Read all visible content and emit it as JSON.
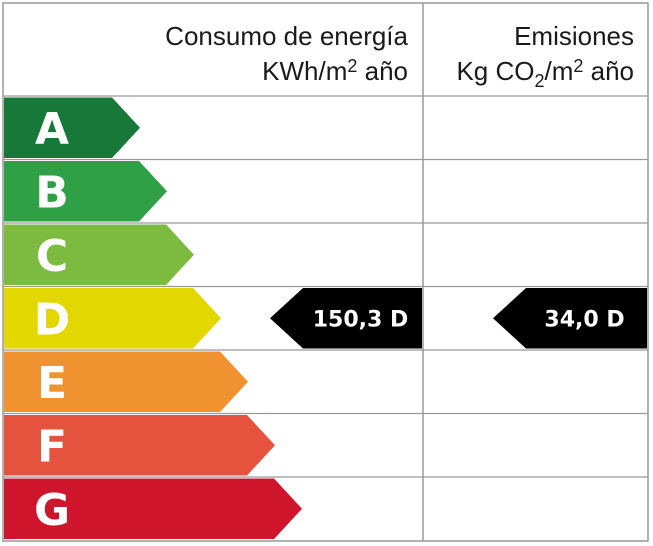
{
  "header": {
    "consumption_title": "Consumo de energía",
    "consumption_unit": [
      "KWh/m",
      "2",
      " año"
    ],
    "emissions_title": "Emisiones",
    "emissions_unit": [
      "Kg CO",
      "2",
      "/m",
      "2",
      " año"
    ]
  },
  "grades": [
    {
      "letter": "A",
      "color": "#17783a"
    },
    {
      "letter": "B",
      "color": "#2fa046"
    },
    {
      "letter": "C",
      "color": "#7cbb3f"
    },
    {
      "letter": "D",
      "color": "#e2d700"
    },
    {
      "letter": "E",
      "color": "#f0922f"
    },
    {
      "letter": "F",
      "color": "#e5533f"
    },
    {
      "letter": "G",
      "color": "#cf152c"
    }
  ],
  "rating": {
    "row": 3,
    "consumption": "150,3 D",
    "emissions": "34,0 D"
  }
}
